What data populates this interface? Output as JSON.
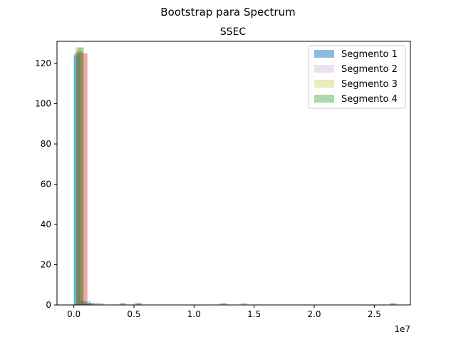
{
  "chart_data": {
    "type": "bar",
    "suptitle": "Bootstrap para Spectrum",
    "title": "SSEC",
    "xlabel": "",
    "ylabel": "",
    "x_offset_text": "1e7",
    "xlim": [
      -1400000,
      28000000
    ],
    "ylim": [
      0,
      131
    ],
    "x_ticks": [
      0,
      5000000,
      10000000,
      15000000,
      20000000,
      25000000
    ],
    "x_tick_labels": [
      "0.0",
      "0.5",
      "1.0",
      "1.5",
      "2.0",
      "2.5"
    ],
    "y_ticks": [
      0,
      20,
      40,
      60,
      80,
      100,
      120
    ],
    "y_tick_labels": [
      "0",
      "20",
      "40",
      "60",
      "80",
      "100",
      "120"
    ],
    "grid": false,
    "legend_position": "top-right",
    "legend": [
      "Segmento 1",
      "Segmento 2",
      "Segmento 3",
      "Segmento 4"
    ],
    "series": [
      {
        "name": "Segmento 1",
        "color": "#1f77b4",
        "opacity": 0.5,
        "bars": [
          [
            0,
            124
          ],
          [
            400000,
            2
          ],
          [
            800000,
            1
          ],
          [
            1200000,
            1
          ],
          [
            5100000,
            1
          ]
        ]
      },
      {
        "name": "Segmento 2",
        "color": "#9467bd",
        "opacity": 0.2,
        "bars": [
          [
            50000,
            125
          ],
          [
            450000,
            2
          ],
          [
            950000,
            1
          ],
          [
            1450000,
            1
          ],
          [
            1900000,
            1
          ]
        ]
      },
      {
        "name": "Segmento 3",
        "color": "#bcbd22",
        "opacity": 0.3,
        "bars": [
          [
            100000,
            128
          ],
          [
            600000,
            1
          ],
          [
            1600000,
            1
          ],
          [
            2000000,
            1
          ]
        ]
      },
      {
        "name": "",
        "color": "#17becf",
        "opacity": 0.4,
        "bars": [
          [
            0,
            125
          ],
          [
            900000,
            2
          ],
          [
            13900000,
            1
          ]
        ]
      },
      {
        "name": "",
        "color": "#d62728",
        "opacity": 0.4,
        "bars": [
          [
            200000,
            126
          ],
          [
            600000,
            125
          ],
          [
            3800000,
            1
          ],
          [
            12200000,
            1
          ],
          [
            26300000,
            1
          ]
        ]
      },
      {
        "name": "Segmento 4",
        "color": "#2ca02c",
        "opacity": 0.4,
        "bars": [
          [
            300000,
            128
          ]
        ]
      }
    ]
  }
}
